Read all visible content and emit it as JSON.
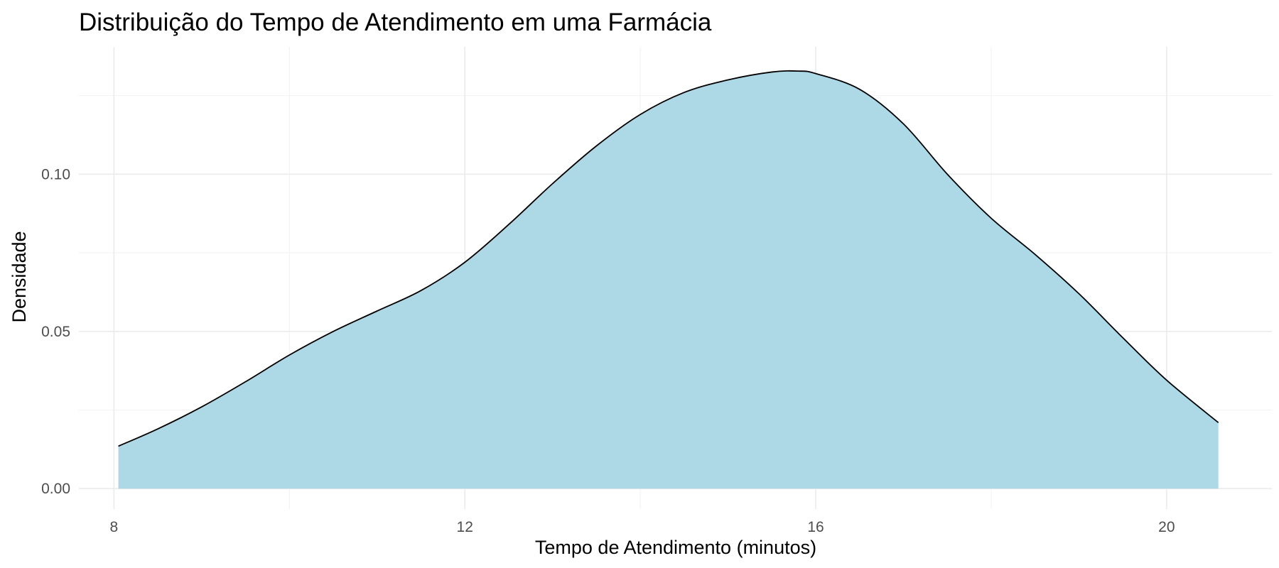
{
  "chart_data": {
    "type": "area",
    "title": "Distribuição do Tempo de Atendimento em uma Farmácia",
    "xlabel": "Tempo de Atendimento (minutos)",
    "ylabel": "Densidade",
    "xlim": [
      7.6,
      21.2
    ],
    "ylim": [
      -0.0065,
      0.1405
    ],
    "x_ticks": [
      8,
      12,
      16,
      20
    ],
    "x_tick_labels": [
      "8",
      "12",
      "16",
      "20"
    ],
    "y_ticks": [
      0,
      0.05,
      0.1
    ],
    "y_tick_labels": [
      "0.00",
      "0.05",
      "0.10"
    ],
    "grid": true,
    "legend": "none",
    "series": [
      {
        "x": [
          8.05,
          8.5,
          9.0,
          9.5,
          10.0,
          10.5,
          11.0,
          11.5,
          12.0,
          12.5,
          13.0,
          13.5,
          14.0,
          14.5,
          15.0,
          15.5,
          15.8,
          16.0,
          16.5,
          17.0,
          17.5,
          18.0,
          18.5,
          19.0,
          19.5,
          20.0,
          20.59
        ],
        "y": [
          0.0135,
          0.019,
          0.026,
          0.034,
          0.0425,
          0.05,
          0.0565,
          0.063,
          0.072,
          0.084,
          0.097,
          0.109,
          0.119,
          0.126,
          0.13,
          0.1325,
          0.1328,
          0.132,
          0.127,
          0.116,
          0.1,
          0.086,
          0.0745,
          0.062,
          0.048,
          0.0345,
          0.021
        ]
      }
    ],
    "colors": {
      "fill": "#add8e6",
      "line": "#000000",
      "grid": "#ebebeb"
    }
  }
}
